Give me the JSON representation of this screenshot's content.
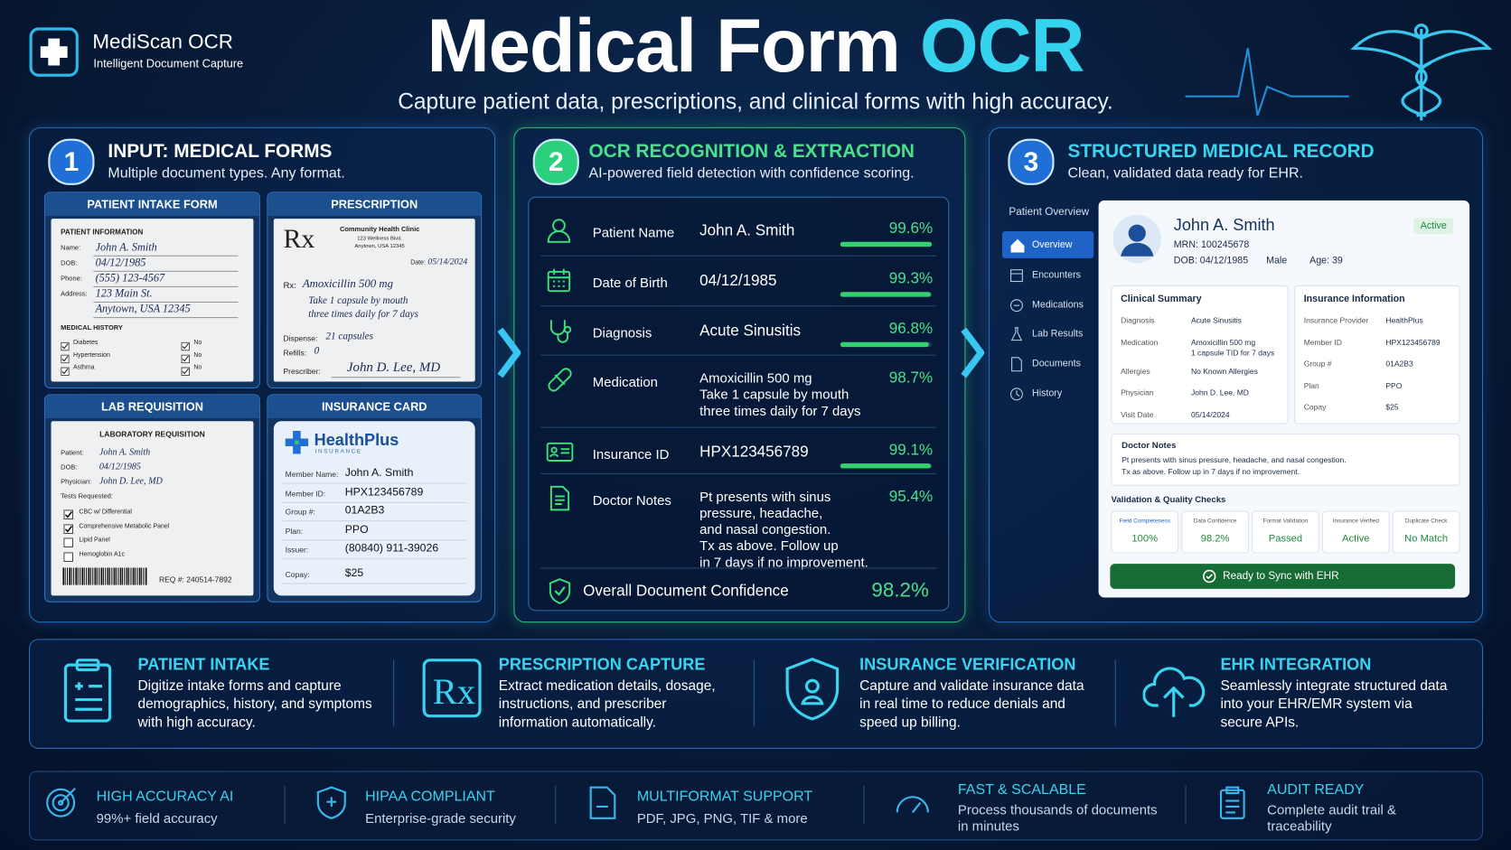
{
  "brand": {
    "name": "MediScan OCR",
    "tagline": "Intelligent Document Capture"
  },
  "header": {
    "title_main": "Medical Form",
    "title_accent": "OCR",
    "subtitle": "Capture patient data, prescriptions, and clinical forms with high accuracy."
  },
  "panels": [
    {
      "number": "1",
      "title": "INPUT: MEDICAL FORMS",
      "subtitle": "Multiple document types. Any format."
    },
    {
      "number": "2",
      "title": "OCR RECOGNITION & EXTRACTION",
      "subtitle": "AI-powered field detection with confidence scoring."
    },
    {
      "number": "3",
      "title": "STRUCTURED MEDICAL RECORD",
      "subtitle": "Clean, validated data ready for EHR."
    }
  ],
  "intake": {
    "label": "PATIENT INTAKE FORM",
    "section": "PATIENT INFORMATION",
    "fields": [
      {
        "label": "Name:",
        "value": "John A. Smith"
      },
      {
        "label": "DOB:",
        "value": "04/12/1985"
      },
      {
        "label": "Phone:",
        "value": "(555) 123-4567"
      },
      {
        "label": "Address:",
        "value": "123 Main St."
      }
    ],
    "address_line2": "Anytown, USA 12345",
    "history_title": "MEDICAL HISTORY",
    "history": [
      {
        "item": "Diabetes",
        "answer": "No"
      },
      {
        "item": "Hypertension",
        "answer": "No"
      },
      {
        "item": "Asthma",
        "answer": "No"
      }
    ]
  },
  "prescription": {
    "label": "PRESCRIPTION",
    "symbol": "Rx",
    "clinic": "Community Health Clinic",
    "address": [
      "123 Wellness Blvd.",
      "Anytown, USA 12345"
    ],
    "date_label": "Date:",
    "date": "05/14/2024",
    "rx_label": "Rx:",
    "drug": "Amoxicillin 500 mg",
    "sig": [
      "Take 1 capsule by mouth",
      "three times daily for 7 days"
    ],
    "dispense_label": "Dispense:",
    "dispense": "21 capsules",
    "refills_label": "Refills:",
    "refills": "0",
    "prescriber_label": "Prescriber:",
    "prescriber": "John D. Lee, MD"
  },
  "lab": {
    "label": "LAB REQUISITION",
    "title": "LABORATORY REQUISITION",
    "fields": [
      {
        "label": "Patient:",
        "value": "John A. Smith"
      },
      {
        "label": "DOB:",
        "value": "04/12/1985"
      },
      {
        "label": "Physician:",
        "value": "John D. Lee, MD"
      }
    ],
    "tests_label": "Tests Requested:",
    "tests": [
      {
        "name": "CBC w/ Differential",
        "checked": true
      },
      {
        "name": "Comprehensive Metabolic Panel",
        "checked": true
      },
      {
        "name": "Lipid Panel",
        "checked": false
      },
      {
        "name": "Hemoglobin A1c",
        "checked": false
      }
    ],
    "req": "REQ #: 240514-7892"
  },
  "insurance_card": {
    "label": "INSURANCE CARD",
    "brand": "HealthPlus",
    "brand_sub": "INSURANCE",
    "fields": [
      {
        "label": "Member Name:",
        "value": "John A. Smith"
      },
      {
        "label": "Member ID:",
        "value": "HPX123456789"
      },
      {
        "label": "Group #:",
        "value": "01A2B3"
      },
      {
        "label": "Plan:",
        "value": "PPO"
      },
      {
        "label": "Issuer:",
        "value": "(80840) 911-39026"
      },
      {
        "label": "Copay:",
        "value": "$25"
      }
    ]
  },
  "extraction": {
    "fields": [
      {
        "label": "Patient Name",
        "value_lines": [
          "John A. Smith"
        ],
        "confidence": "99.6%"
      },
      {
        "label": "Date of Birth",
        "value_lines": [
          "04/12/1985"
        ],
        "confidence": "99.3%"
      },
      {
        "label": "Diagnosis",
        "value_lines": [
          "Acute Sinusitis"
        ],
        "confidence": "96.8%"
      },
      {
        "label": "Medication",
        "value_lines": [
          "Amoxicillin 500 mg",
          "Take 1 capsule by mouth",
          "three times daily for 7 days"
        ],
        "confidence": "98.7%"
      },
      {
        "label": "Insurance ID",
        "value_lines": [
          "HPX123456789"
        ],
        "confidence": "99.1%"
      },
      {
        "label": "Doctor Notes",
        "value_lines": [
          "Pt presents with sinus",
          "pressure, headache,",
          "and nasal congestion.",
          "Tx as above. Follow up",
          "in 7 days if no improvement."
        ],
        "confidence": "95.4%"
      }
    ],
    "overall_label": "Overall Document Confidence",
    "overall": "98.2%"
  },
  "record": {
    "nav_title": "Patient Overview",
    "nav": [
      "Overview",
      "Encounters",
      "Medications",
      "Lab Results",
      "Documents",
      "History"
    ],
    "patient": {
      "name": "John A. Smith",
      "mrn": "MRN: 100245678",
      "dob": "DOB: 04/12/1985",
      "sex": "Male",
      "age": "Age: 39",
      "status": "Active"
    },
    "clinical": {
      "title": "Clinical Summary",
      "rows": [
        {
          "label": "Diagnosis",
          "value_lines": [
            "Acute Sinusitis"
          ]
        },
        {
          "label": "Medication",
          "value_lines": [
            "Amoxicillin 500 mg",
            "1 capsule TID for 7 days"
          ]
        },
        {
          "label": "Allergies",
          "value_lines": [
            "No Known Allergies"
          ]
        },
        {
          "label": "Physician",
          "value_lines": [
            "John D. Lee, MD"
          ]
        },
        {
          "label": "Visit Date",
          "value_lines": [
            "05/14/2024"
          ]
        }
      ]
    },
    "insurance": {
      "title": "Insurance Information",
      "rows": [
        {
          "label": "Insurance Provider",
          "value": "HealthPlus"
        },
        {
          "label": "Member ID",
          "value": "HPX123456789"
        },
        {
          "label": "Group #",
          "value": "01A2B3"
        },
        {
          "label": "Plan",
          "value": "PPO"
        },
        {
          "label": "Copay",
          "value": "$25"
        }
      ]
    },
    "notes": {
      "title": "Doctor Notes",
      "lines": [
        "Pt presents with sinus pressure, headache, and nasal congestion.",
        "Tx as above. Follow up in 7 days if no improvement."
      ]
    },
    "checks": {
      "title": "Validation & Quality Checks",
      "items": [
        {
          "label": "Field Completeness",
          "value": "100%"
        },
        {
          "label": "Data Confidence",
          "value": "98.2%"
        },
        {
          "label": "Format Validation",
          "value": "Passed"
        },
        {
          "label": "Insurance Verified",
          "value": "Active"
        },
        {
          "label": "Duplicate Check",
          "value": "No Match"
        }
      ]
    },
    "sync": "Ready to Sync with EHR"
  },
  "features": [
    {
      "title": "PATIENT INTAKE",
      "lines": [
        "Digitize intake forms and capture",
        "demographics, history, and symptoms",
        "with high accuracy."
      ]
    },
    {
      "title": "PRESCRIPTION CAPTURE",
      "lines": [
        "Extract medication details, dosage,",
        "instructions, and prescriber",
        "information automatically."
      ]
    },
    {
      "title": "INSURANCE VERIFICATION",
      "lines": [
        "Capture and validate insurance data",
        "in real time to reduce denials and",
        "speed up billing."
      ]
    },
    {
      "title": "EHR INTEGRATION",
      "lines": [
        "Seamlessly integrate structured data",
        "into your EHR/EMR system via",
        "secure APIs."
      ]
    }
  ],
  "footer": [
    {
      "title": "HIGH ACCURACY AI",
      "lines": [
        "99%+ field accuracy"
      ]
    },
    {
      "title": "HIPAA COMPLIANT",
      "lines": [
        "Enterprise-grade security"
      ]
    },
    {
      "title": "MULTIFORMAT SUPPORT",
      "lines": [
        "PDF, JPG, PNG, TIF & more"
      ]
    },
    {
      "title": "FAST & SCALABLE",
      "lines": [
        "Process thousands of documents",
        "in minutes"
      ]
    },
    {
      "title": "AUDIT READY",
      "lines": [
        "Complete audit trail &",
        "traceability"
      ]
    }
  ]
}
